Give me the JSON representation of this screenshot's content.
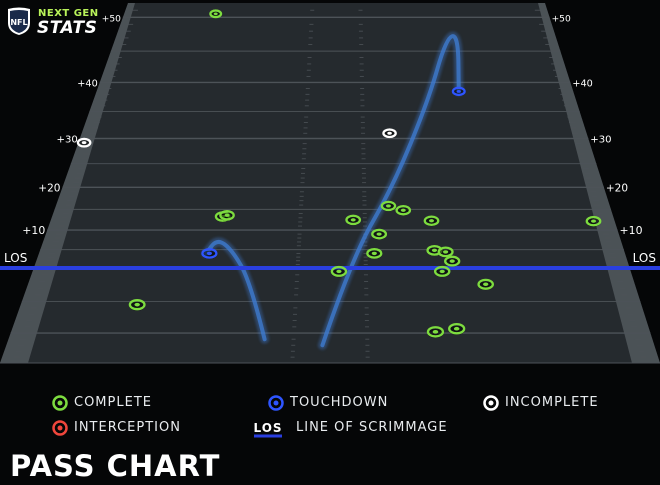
{
  "brand": {
    "logo_label": "NFL",
    "line1": "NEXT GEN",
    "line2": "STATS",
    "accent_color": "#b9f35a"
  },
  "chart_title": "PASS CHART",
  "colors": {
    "complete": "#7ddc3f",
    "touchdown": "#2e55ff",
    "incomplete": "#ffffff",
    "interception": "#f0463c",
    "los": "#2a3fe0",
    "field": "#252a2e",
    "field_lines": "#4d5358",
    "sideline": "#6c7378",
    "ball_trail": "#3f7dd6"
  },
  "legend": {
    "complete": "COMPLETE",
    "touchdown": "TOUCHDOWN",
    "incomplete": "INCOMPLETE",
    "interception": "INTERCEPTION",
    "los_tag": "LOS",
    "los": "LINE OF SCRIMMAGE"
  },
  "chart_data": {
    "type": "scatter",
    "title": "PASS CHART",
    "x_axis": "field width, 0 = left sideline, 53.3 = right sideline (yards)",
    "y_axis": "air yards relative to line of scrimmage",
    "ylim": [
      -15,
      52
    ],
    "yticks": [
      {
        "value": 10,
        "label": "+10"
      },
      {
        "value": 20,
        "label": "+20"
      },
      {
        "value": 30,
        "label": "+30"
      },
      {
        "value": 40,
        "label": "+40"
      },
      {
        "value": 50,
        "label": "+50"
      }
    ],
    "los_label": "LOS",
    "points": [
      {
        "x": 11.5,
        "y": 50.5,
        "result": "complete"
      },
      {
        "x": 16.2,
        "y": 13.3,
        "result": "complete"
      },
      {
        "x": 16.6,
        "y": 13.6,
        "result": "complete"
      },
      {
        "x": 10.0,
        "y": -5.5,
        "result": "complete"
      },
      {
        "x": 28.6,
        "y": 12.5,
        "result": "complete"
      },
      {
        "x": 32.0,
        "y": 15.8,
        "result": "complete"
      },
      {
        "x": 33.4,
        "y": 14.8,
        "result": "complete"
      },
      {
        "x": 31.0,
        "y": 9.0,
        "result": "complete"
      },
      {
        "x": 36.0,
        "y": 12.3,
        "result": "complete"
      },
      {
        "x": 51.3,
        "y": 12.2,
        "result": "complete"
      },
      {
        "x": 30.5,
        "y": 4.0,
        "result": "complete"
      },
      {
        "x": 27.3,
        "y": -0.5,
        "result": "complete"
      },
      {
        "x": 36.0,
        "y": 4.8,
        "result": "complete"
      },
      {
        "x": 37.0,
        "y": 4.4,
        "result": "complete"
      },
      {
        "x": 37.5,
        "y": 1.9,
        "result": "complete"
      },
      {
        "x": 36.5,
        "y": -0.5,
        "result": "complete"
      },
      {
        "x": 40.2,
        "y": -2.4,
        "result": "complete"
      },
      {
        "x": 35.4,
        "y": -9.8,
        "result": "complete"
      },
      {
        "x": 37.2,
        "y": -9.3,
        "result": "complete"
      },
      {
        "x": 15.5,
        "y": 4.0,
        "result": "touchdown"
      },
      {
        "x": 40.5,
        "y": 38.5,
        "result": "touchdown"
      },
      {
        "x": 32.5,
        "y": 31.0,
        "result": "incomplete"
      },
      {
        "x": 0.6,
        "y": 29.2,
        "result": "incomplete"
      }
    ],
    "trails": [
      {
        "path": [
          [
            21.2,
            -11
          ],
          [
            19.5,
            -2
          ],
          [
            17.5,
            5
          ],
          [
            16.0,
            7.8
          ],
          [
            15.2,
            4.0
          ]
        ]
      },
      {
        "path": [
          [
            26.0,
            -12
          ],
          [
            28.5,
            3
          ],
          [
            32.5,
            20
          ],
          [
            37.0,
            37
          ],
          [
            40.0,
            47
          ],
          [
            41.5,
            47.5
          ],
          [
            40.5,
            38.5
          ]
        ]
      }
    ]
  }
}
